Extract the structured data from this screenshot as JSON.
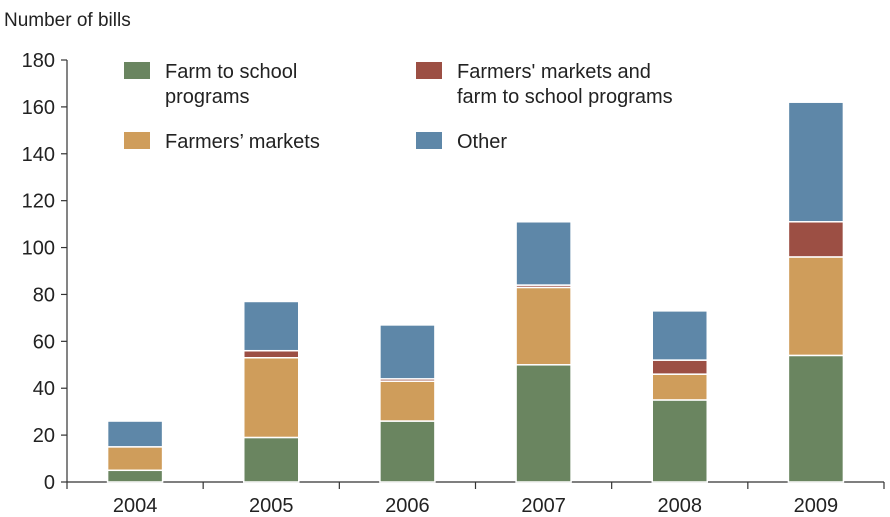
{
  "chart_data": {
    "type": "bar",
    "stacked": true,
    "title": "",
    "ylabel": "Number of bills",
    "xlabel": "",
    "ylim": [
      0,
      180
    ],
    "yticks": [
      0,
      20,
      40,
      60,
      80,
      100,
      120,
      140,
      160,
      180
    ],
    "categories": [
      "2004",
      "2005",
      "2006",
      "2007",
      "2008",
      "2009"
    ],
    "series": [
      {
        "name": "Farm to school programs",
        "legend_lines": [
          "Farm to school",
          "programs"
        ],
        "color": "#6a8560",
        "values": [
          5,
          19,
          26,
          50,
          35,
          54
        ]
      },
      {
        "name": "Farmers' markets",
        "legend_lines": [
          "Farmers’ markets"
        ],
        "color": "#cf9d5b",
        "values": [
          10,
          34,
          17,
          33,
          11,
          42
        ]
      },
      {
        "name": "Farmers' markets and farm to school programs",
        "legend_lines": [
          "Farmers' markets and",
          "farm to school programs"
        ],
        "color": "#9c4f44",
        "values": [
          0,
          3,
          1,
          1,
          6,
          15
        ]
      },
      {
        "name": "Other",
        "legend_lines": [
          "Other"
        ],
        "color": "#5e87a8",
        "values": [
          11,
          21,
          23,
          27,
          21,
          51
        ]
      }
    ],
    "legend_order": [
      0,
      2,
      1,
      3
    ],
    "grid": false,
    "legend_position": "top-left"
  }
}
